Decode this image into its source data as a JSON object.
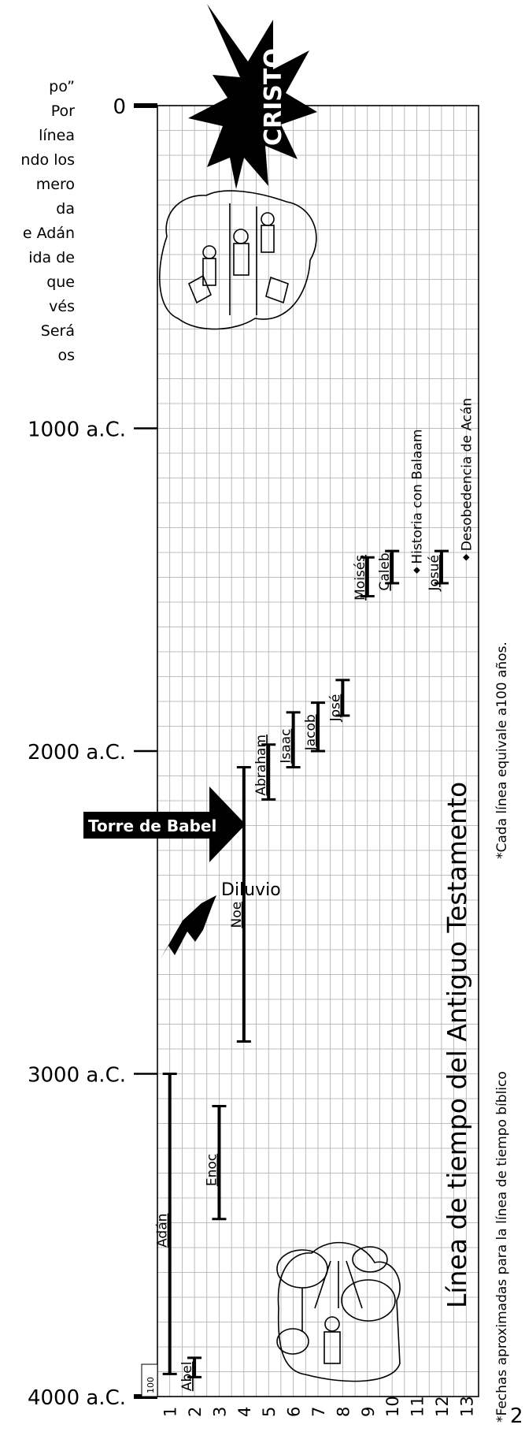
{
  "intro_fragment": [
    "po”",
    "Por",
    "línea",
    "ndo los",
    "mero",
    "da",
    "e Adán",
    "ida de",
    "que",
    "vés",
    "Será",
    "os"
  ],
  "year_marks": [
    {
      "label": "0",
      "year": 0
    },
    {
      "label": "1000 a.C.",
      "year": 1000
    },
    {
      "label": "2000 a.C.",
      "year": 2000
    },
    {
      "label": "3000 a.C.",
      "year": 3000
    },
    {
      "label": "4000 a.C.",
      "year": 4000
    }
  ],
  "scale_label": "100",
  "columns": [
    "1",
    "2",
    "3",
    "4",
    "5",
    "6",
    "7",
    "8",
    "9",
    "10",
    "11",
    "12",
    "13"
  ],
  "people": [
    {
      "name": "Adán",
      "col": 1,
      "from": 3930,
      "to": 3000
    },
    {
      "name": "Abel",
      "col": 2,
      "from": 3940,
      "to": 3880
    },
    {
      "name": "Enoc",
      "col": 3,
      "from": 3450,
      "to": 3100
    },
    {
      "name": "Noe",
      "col": 4,
      "from": 2900,
      "to": 2050
    },
    {
      "name": "Abraham",
      "col": 5,
      "from": 2150,
      "to": 1980
    },
    {
      "name": "Isaac",
      "col": 6,
      "from": 2050,
      "to": 1880
    },
    {
      "name": "Jacob",
      "col": 7,
      "from": 2000,
      "to": 1850
    },
    {
      "name": "José",
      "col": 8,
      "from": 1890,
      "to": 1780
    },
    {
      "name": "Moisés",
      "col": 9,
      "from": 1520,
      "to": 1400
    },
    {
      "name": "Caleb",
      "col": 10,
      "from": 1480,
      "to": 1380
    },
    {
      "name": "Josué",
      "col": 12,
      "from": 1480,
      "to": 1380
    }
  ],
  "events": [
    {
      "label": "Historia con Balaam",
      "col": 11,
      "year": 1440
    },
    {
      "label": "Desobedencia de Acán",
      "col": 13,
      "year": 1400
    }
  ],
  "flood_label": "Diluvio",
  "babel_label": "Torre de Babel",
  "christ_label": "CRISTO",
  "chart_title": "Línea de tiempo del Antiguo Testamento",
  "note_scale": "*Cada línea equivale a100 años.",
  "note_dates": "*Fechas aproximadas para la línea de tiempo bíblico",
  "page_number": "2"
}
